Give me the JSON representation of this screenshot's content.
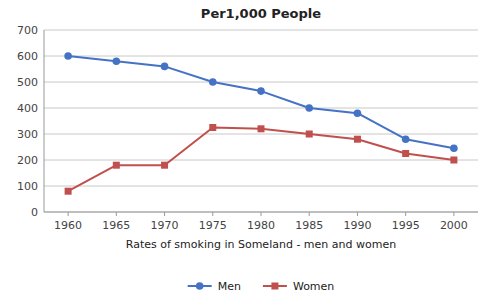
{
  "chart_data": {
    "type": "line",
    "title": "Per1,000 People",
    "xlabel": "Rates of smoking in Someland - men and women",
    "x": [
      1960,
      1965,
      1970,
      1975,
      1980,
      1985,
      1990,
      1995,
      2000
    ],
    "series": [
      {
        "name": "Men",
        "color": "#4472C4",
        "marker": "circle",
        "values": [
          600,
          580,
          560,
          500,
          465,
          400,
          380,
          280,
          245
        ]
      },
      {
        "name": "Women",
        "color": "#C0504D",
        "marker": "square",
        "values": [
          80,
          180,
          180,
          325,
          320,
          300,
          280,
          225,
          200
        ]
      }
    ],
    "xlim": [
      1957.5,
      2002.5
    ],
    "xticks": [
      1960,
      1965,
      1970,
      1975,
      1980,
      1985,
      1990,
      1995,
      2000
    ],
    "ylim": [
      0,
      700
    ],
    "yticks": [
      0,
      100,
      200,
      300,
      400,
      500,
      600,
      700
    ],
    "grid": true,
    "legend": "bottom"
  }
}
